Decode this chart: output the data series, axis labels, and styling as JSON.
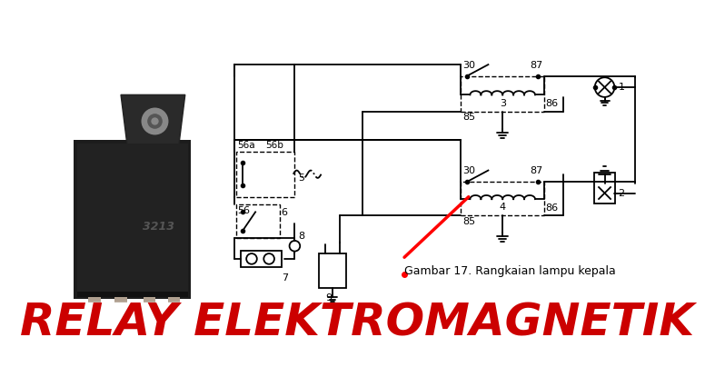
{
  "title": "RELAY ELEKTROMAGNETIK",
  "title_color": "#CC0000",
  "title_fontsize": 36,
  "caption": "Gambar 17. Rangkaian lampu kepala",
  "caption_fontsize": 9,
  "bg_color": "#ffffff",
  "lw": 1.3,
  "relay_box_color": "#1a1a1a",
  "relay_bracket_color": "#2a2a2a",
  "relay_pin_color": "#aaaaaa",
  "relay_text_color": "#555555"
}
